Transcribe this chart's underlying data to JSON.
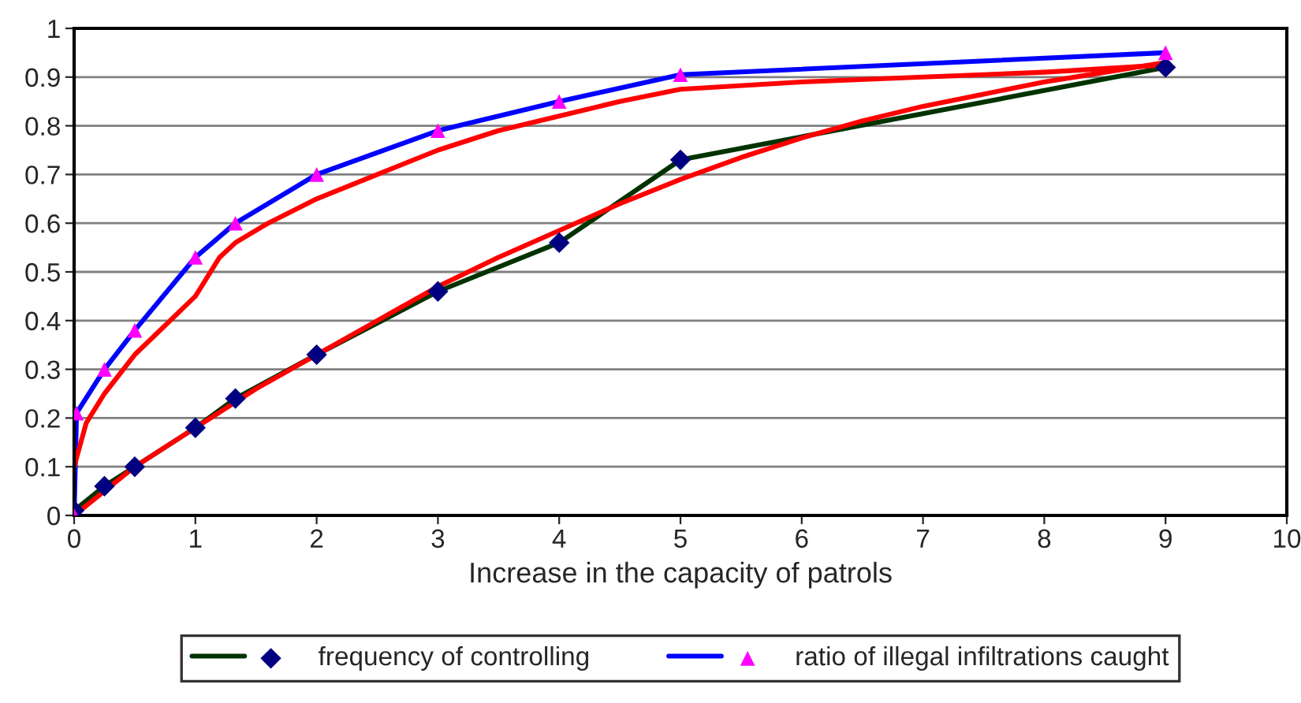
{
  "chart_data": {
    "type": "line",
    "xlabel": "Increase in the capacity of patrols",
    "xlim": [
      0,
      10
    ],
    "xticks": [
      0,
      1,
      2,
      3,
      4,
      5,
      6,
      7,
      8,
      9,
      10
    ],
    "ylim": [
      0,
      1
    ],
    "yticks": [
      0,
      0.1,
      0.2,
      0.3,
      0.4,
      0.5,
      0.6,
      0.7,
      0.8,
      0.9,
      1
    ],
    "grid": "y",
    "legend": "bottom",
    "series": [
      {
        "name": "frequency of controlling",
        "color": "#003300",
        "colors": [
          "#000080",
          "#000080",
          "#000080",
          "#000080",
          "#000080",
          "#000080",
          "#000080",
          "#000080",
          "#000080",
          "#000080"
        ],
        "marker": "diamond",
        "x": [
          0,
          0.25,
          0.5,
          1,
          1.33,
          2,
          3,
          4,
          5,
          9
        ],
        "values": [
          0.01,
          0.06,
          0.1,
          0.18,
          0.24,
          0.33,
          0.46,
          0.56,
          0.73,
          0.92
        ]
      },
      {
        "name": "ratio of illegal infiltrations caught",
        "color": "#0000ff",
        "colors": [
          "#ff00ff",
          "#ff00ff",
          "#ff00ff",
          "#ff00ff",
          "#ff00ff",
          "#ff00ff",
          "#ff00ff",
          "#ff00ff",
          "#ff00ff",
          "#ff00ff",
          "#ff00ff"
        ],
        "marker": "triangle",
        "x": [
          0,
          0.02,
          0.25,
          0.5,
          1,
          1.33,
          2,
          3,
          4,
          5,
          9
        ],
        "values": [
          0,
          0.21,
          0.3,
          0.38,
          0.53,
          0.6,
          0.7,
          0.79,
          0.85,
          0.905,
          0.95
        ]
      },
      {
        "color": "#ff0000",
        "marker": "none",
        "x": [
          0,
          0.1,
          0.25,
          0.5,
          0.75,
          1,
          1.1,
          1.2,
          1.33,
          1.6,
          2,
          2.5,
          3,
          3.5,
          4,
          4.5,
          5,
          6,
          7,
          8,
          9
        ],
        "values": [
          0.1,
          0.19,
          0.25,
          0.33,
          0.39,
          0.45,
          0.49,
          0.53,
          0.56,
          0.6,
          0.65,
          0.7,
          0.75,
          0.79,
          0.82,
          0.85,
          0.875,
          0.89,
          0.9,
          0.91,
          0.925
        ]
      },
      {
        "color": "#ff0000",
        "marker": "none",
        "x": [
          0,
          0.5,
          1,
          1.5,
          2,
          2.5,
          3,
          3.5,
          4,
          4.5,
          5,
          5.5,
          6,
          6.5,
          7,
          7.5,
          8,
          8.5,
          9
        ],
        "values": [
          0.0,
          0.1,
          0.18,
          0.26,
          0.33,
          0.4,
          0.47,
          0.53,
          0.585,
          0.64,
          0.69,
          0.735,
          0.775,
          0.81,
          0.84,
          0.865,
          0.89,
          0.91,
          0.93
        ]
      }
    ]
  }
}
